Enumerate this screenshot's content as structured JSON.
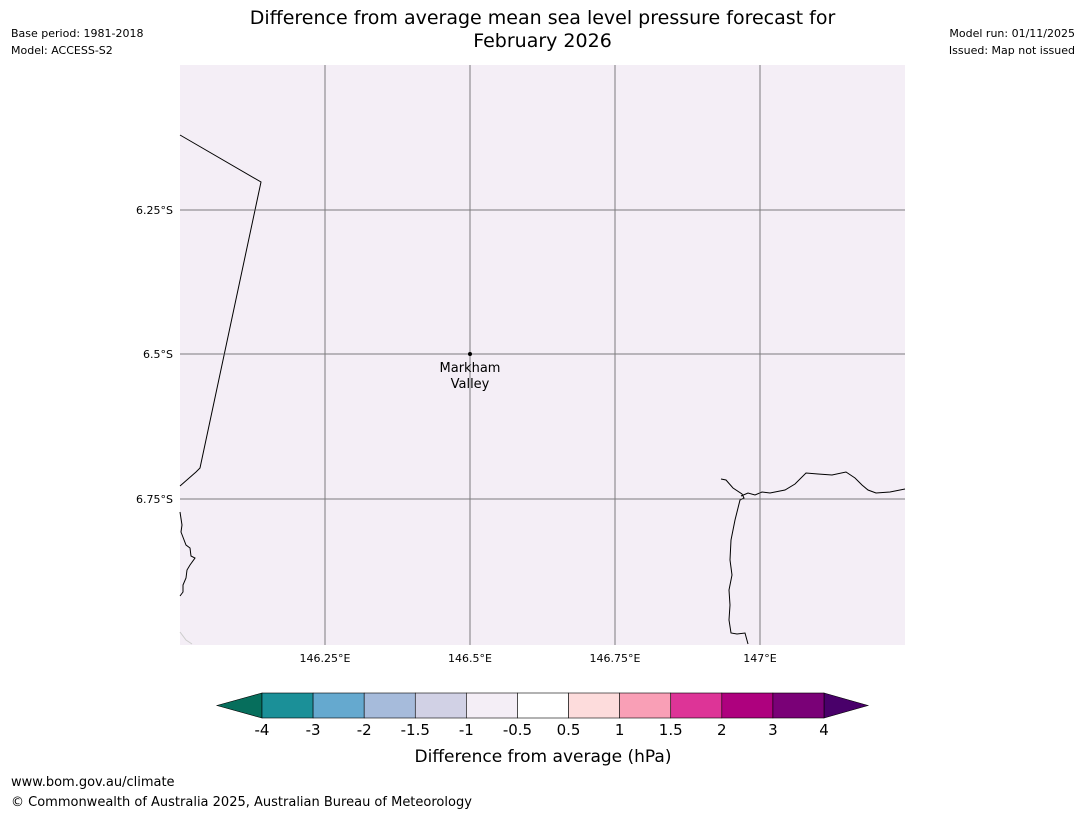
{
  "header": {
    "title_line1": "Difference from average mean sea level pressure forecast for",
    "title_line2": "February 2026",
    "base_period": "Base period: 1981-2018",
    "model": "Model: ACCESS-S2",
    "model_run": "Model run: 01/11/2025",
    "issued": "Issued: Map not issued"
  },
  "map": {
    "background_color": "#f4eef6",
    "lat_labels": [
      "6.25°S",
      "6.5°S",
      "6.75°S"
    ],
    "lon_labels": [
      "146.25°E",
      "146.5°E",
      "146.75°E",
      "147°E"
    ],
    "place": {
      "name_line1": "Markham",
      "name_line2": "Valley"
    }
  },
  "colorbar": {
    "label": "Difference from average (hPa)",
    "ticks": [
      "-4",
      "-3",
      "-2",
      "-1.5",
      "-1",
      "-0.5",
      "0.5",
      "1",
      "1.5",
      "2",
      "3",
      "4"
    ],
    "under_color": "#066e5c",
    "over_color": "#49006a",
    "colors": [
      "#1b9098",
      "#65a9cf",
      "#a6bbdb",
      "#d1d1e5",
      "#f4eef6",
      "#ffffff",
      "#fddcdc",
      "#f99fb6",
      "#dd3497",
      "#ae017e",
      "#7a0177"
    ]
  },
  "footer": {
    "url": "www.bom.gov.au/climate",
    "copyright": "© Commonwealth of Australia 2025, Australian Bureau of Meteorology"
  }
}
